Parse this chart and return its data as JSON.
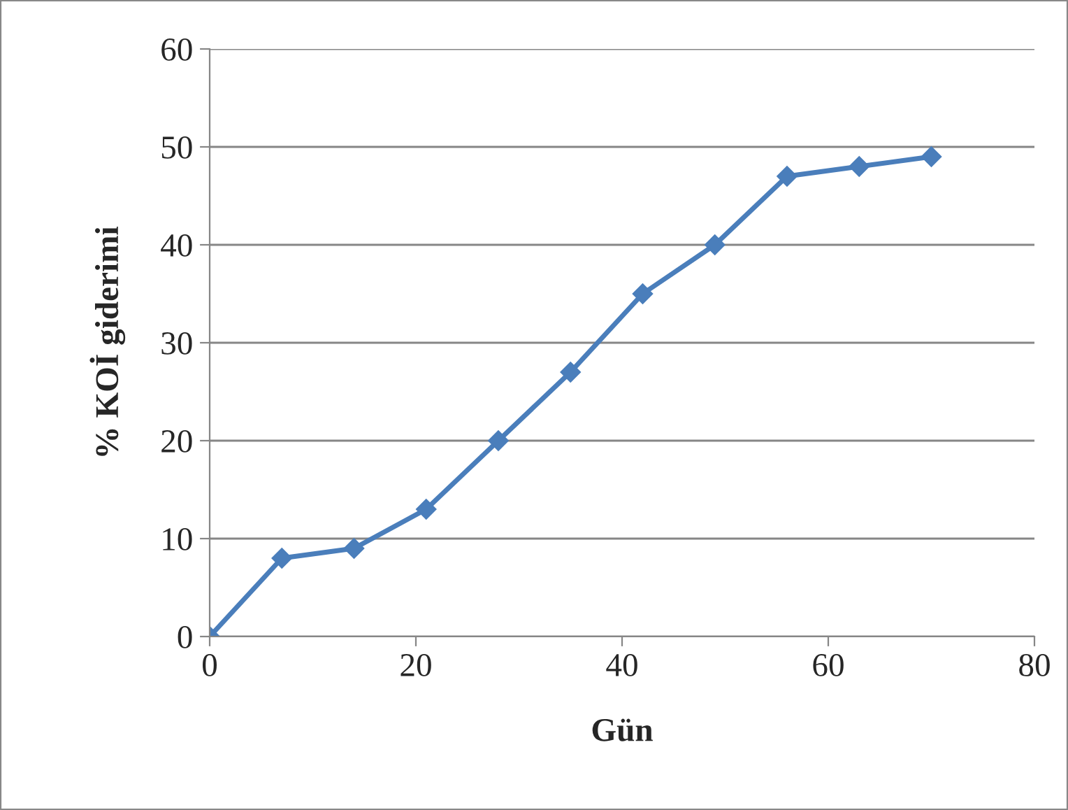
{
  "chart_data": {
    "type": "line",
    "xlabel": "Gün",
    "ylabel": "% KOİ giderimi",
    "x": [
      0,
      7,
      14,
      21,
      28,
      35,
      42,
      49,
      56,
      63,
      70
    ],
    "series": [
      {
        "color": "#4a7ebb",
        "values": [
          0,
          8,
          9,
          13,
          20,
          27,
          35,
          40,
          47,
          48,
          49
        ]
      }
    ],
    "xlim": [
      0,
      80
    ],
    "xticks": [
      0,
      20,
      40,
      60,
      80
    ],
    "ylim": [
      0,
      60
    ],
    "yticks": [
      0,
      10,
      20,
      30,
      40,
      50,
      60
    ],
    "grid": "y",
    "marker": "diamond",
    "line_style": "solid",
    "legend": false
  }
}
